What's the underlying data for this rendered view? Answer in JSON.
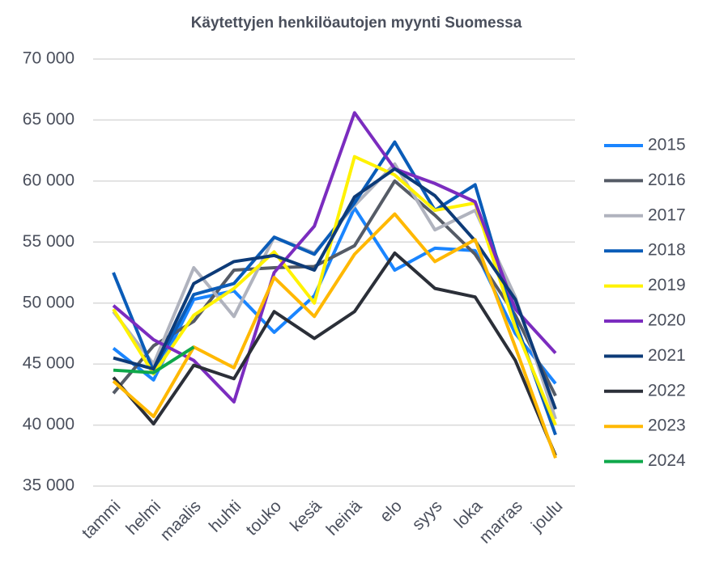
{
  "chart_data": {
    "type": "line",
    "title": "Käytettyjen henkilöautojen myynti Suomessa",
    "categories": [
      "tammi",
      "helmi",
      "maalis",
      "huhti",
      "touko",
      "kesä",
      "heinä",
      "elo",
      "syys",
      "loka",
      "marras",
      "joulu"
    ],
    "ylim": [
      35000,
      70000
    ],
    "yticks": [
      {
        "value": 35000,
        "label": "35 000"
      },
      {
        "value": 40000,
        "label": "40 000"
      },
      {
        "value": 45000,
        "label": "45 000"
      },
      {
        "value": 50000,
        "label": "50 000"
      },
      {
        "value": 55000,
        "label": "55 000"
      },
      {
        "value": 60000,
        "label": "60 000"
      },
      {
        "value": 65000,
        "label": "65 000"
      },
      {
        "value": 70000,
        "label": "70 000"
      }
    ],
    "grid": true,
    "legend": "right",
    "series": [
      {
        "name": "2015",
        "color": "#1a85ff",
        "values": [
          46300,
          43700,
          50300,
          51000,
          47600,
          50600,
          57800,
          52700,
          54500,
          54300,
          47500,
          43400
        ]
      },
      {
        "name": "2016",
        "color": "#555b66",
        "values": [
          42600,
          46500,
          48500,
          52700,
          52900,
          53000,
          54700,
          60000,
          57200,
          54000,
          49000,
          42400
        ]
      },
      {
        "name": "2017",
        "color": "#b0b3be",
        "values": [
          49300,
          45000,
          52900,
          48900,
          55400,
          54100,
          58000,
          61400,
          56000,
          57600,
          50500,
          40500
        ]
      },
      {
        "name": "2018",
        "color": "#0a5cb8",
        "values": [
          52500,
          44400,
          50700,
          51600,
          55400,
          54000,
          58200,
          63200,
          57600,
          59700,
          48500,
          39200
        ]
      },
      {
        "name": "2019",
        "color": "#fff200",
        "values": [
          49500,
          44200,
          49000,
          51200,
          54200,
          50000,
          62000,
          60500,
          57600,
          58200,
          48000,
          40000
        ]
      },
      {
        "name": "2020",
        "color": "#7b2cbf",
        "values": [
          49800,
          47000,
          45300,
          41900,
          52500,
          56300,
          65600,
          61000,
          59800,
          58300,
          49500,
          45900
        ]
      },
      {
        "name": "2021",
        "color": "#0d3b78",
        "values": [
          45500,
          44600,
          51600,
          53400,
          53900,
          52700,
          58700,
          61000,
          58800,
          55100,
          50300,
          41300
        ]
      },
      {
        "name": "2022",
        "color": "#2b2f38",
        "values": [
          43900,
          40100,
          44900,
          43800,
          49300,
          47100,
          49300,
          54100,
          51200,
          50500,
          45300,
          37500
        ]
      },
      {
        "name": "2023",
        "color": "#ffb800",
        "values": [
          43600,
          40700,
          46400,
          44700,
          52100,
          48900,
          54000,
          57300,
          53400,
          55200,
          46400,
          37300
        ]
      },
      {
        "name": "2024",
        "color": "#0ea84a",
        "values": [
          44500,
          44300,
          46400,
          null,
          null,
          null,
          null,
          null,
          null,
          null,
          null,
          null
        ]
      }
    ]
  }
}
